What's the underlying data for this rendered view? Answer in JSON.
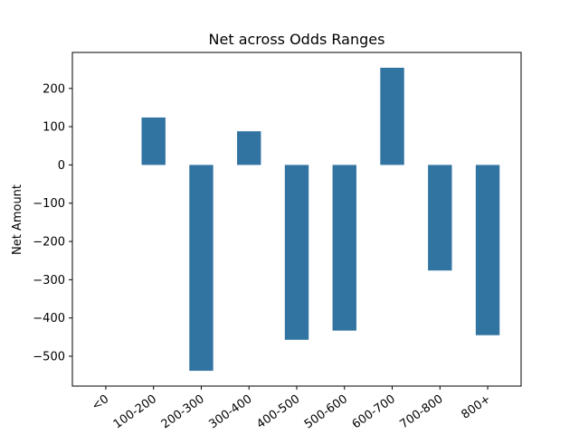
{
  "chart_data": {
    "type": "bar",
    "title": "Net across Odds Ranges",
    "xlabel": "",
    "ylabel": "Net Amount",
    "categories": [
      "<0",
      "100-200",
      "200-300",
      "300-400",
      "400-500",
      "500-600",
      "600-700",
      "700-800",
      "800+"
    ],
    "values": [
      0,
      124,
      -538,
      88,
      -457,
      -433,
      254,
      -276,
      -445
    ],
    "ylim": [
      -578,
      294
    ],
    "yticks": [
      -500,
      -400,
      -300,
      -200,
      -100,
      0,
      100,
      200
    ],
    "ytick_labels": [
      "−500",
      "−400",
      "−300",
      "−200",
      "−100",
      "0",
      "100",
      "200"
    ],
    "bar_color": "#3274a1",
    "grid": false,
    "legend": "none"
  }
}
